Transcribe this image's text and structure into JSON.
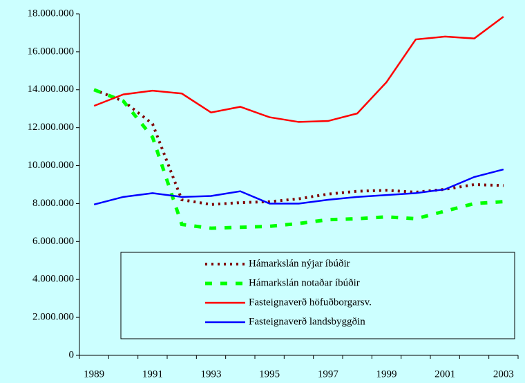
{
  "chart_data": {
    "type": "line",
    "categories": [
      "1989",
      null,
      "1991",
      null,
      "1993",
      null,
      "1995",
      null,
      "1997",
      null,
      "1999",
      null,
      "2001",
      null,
      "2003"
    ],
    "series": [
      {
        "name": "Hámarkslán nýjar íbúðir",
        "color": "#800000",
        "dash": "dot",
        "values": [
          14000000,
          13400000,
          12200000,
          8200000,
          7950000,
          8050000,
          8100000,
          8250000,
          8500000,
          8650000,
          8700000,
          8600000,
          8750000,
          9000000,
          8950000
        ]
      },
      {
        "name": "Hámarkslán notaðar íbúðir",
        "color": "#00ff00",
        "dash": "dash",
        "values": [
          14000000,
          13400000,
          11500000,
          6900000,
          6700000,
          6750000,
          6800000,
          6950000,
          7150000,
          7200000,
          7300000,
          7200000,
          7600000,
          8000000,
          8100000
        ]
      },
      {
        "name": "Fasteignaverð höfuðborgarsv.",
        "color": "#ff0000",
        "dash": "solid",
        "values": [
          13150000,
          13750000,
          13950000,
          13800000,
          12800000,
          13100000,
          12550000,
          12300000,
          12350000,
          12750000,
          14400000,
          16650000,
          16800000,
          16700000,
          17850000
        ]
      },
      {
        "name": "Fasteignaverð landsbyggðin",
        "color": "#0000ff",
        "dash": "solid",
        "values": [
          7950000,
          8350000,
          8550000,
          8350000,
          8400000,
          8650000,
          8000000,
          8000000,
          8200000,
          8350000,
          8450000,
          8550000,
          8750000,
          9400000,
          9800000
        ]
      }
    ],
    "ylim": [
      0,
      18000000
    ],
    "yticks": [
      0,
      {
        "value": 2000000,
        "label": "2.000.000"
      },
      {
        "value": 4000000,
        "label": "4.000.000"
      },
      {
        "value": 6000000,
        "label": "6.000.000"
      },
      {
        "value": 8000000,
        "label": "8.000.000"
      },
      {
        "value": 10000000,
        "label": "10.000.000"
      },
      {
        "value": 12000000,
        "label": "12.000.000"
      },
      {
        "value": 14000000,
        "label": "14.000.000"
      },
      {
        "value": 16000000,
        "label": "16.000.000"
      },
      {
        "value": 18000000,
        "label": "18.000.000"
      }
    ],
    "grid": false,
    "legend": "bottom-right"
  }
}
